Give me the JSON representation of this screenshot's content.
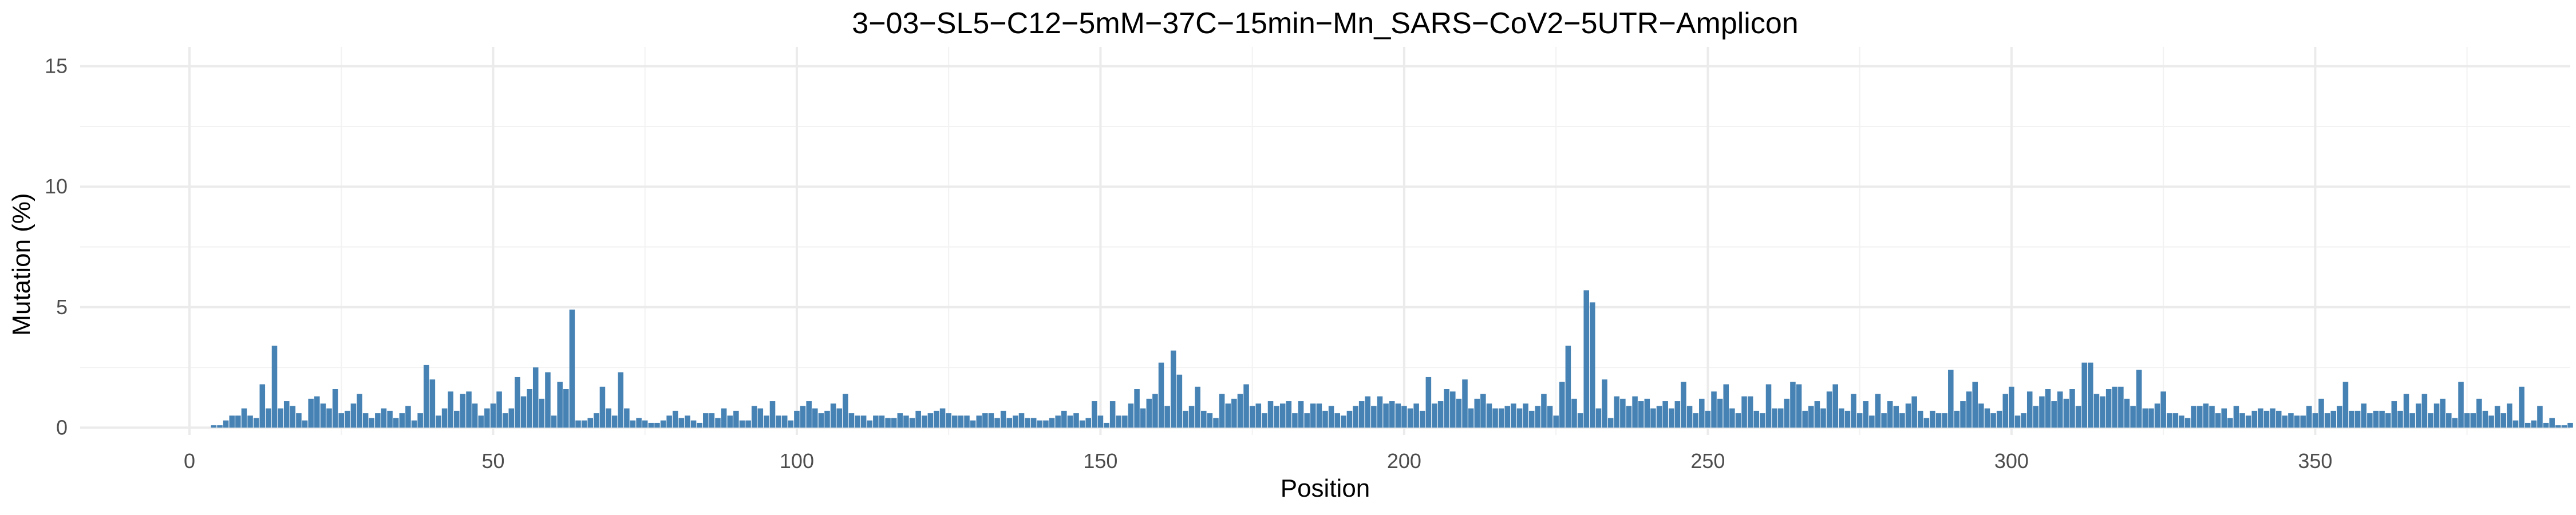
{
  "chart_data": {
    "type": "bar",
    "title": "3−03−SL5−C12−5mM−37C−15min−Mn_SARS−CoV2−5UTR−Amplicon",
    "xlabel": "Position",
    "ylabel": "Mutation (%)",
    "xlim": [
      -18,
      392
    ],
    "ylim": [
      -0.3,
      15.8
    ],
    "xticks": [
      0,
      50,
      100,
      150,
      200,
      250,
      300,
      350
    ],
    "yticks": [
      0,
      5,
      10,
      15
    ],
    "grid": true,
    "legend": "none",
    "bar_color": "#4682B4",
    "positions_start": 4,
    "values": [
      0.1,
      0.1,
      0.3,
      0.5,
      0.5,
      0.8,
      0.5,
      0.4,
      1.8,
      0.8,
      3.4,
      0.8,
      1.1,
      0.9,
      0.6,
      0.3,
      1.2,
      1.3,
      1.0,
      0.8,
      1.6,
      0.6,
      0.7,
      1.0,
      1.4,
      0.6,
      0.4,
      0.6,
      0.8,
      0.7,
      0.4,
      0.6,
      0.9,
      0.3,
      0.6,
      2.6,
      2.0,
      0.5,
      0.8,
      1.5,
      0.7,
      1.4,
      1.5,
      1.0,
      0.5,
      0.8,
      1.0,
      1.5,
      0.6,
      0.8,
      2.1,
      1.3,
      1.6,
      2.5,
      1.2,
      2.3,
      0.5,
      1.9,
      1.6,
      4.9,
      0.3,
      0.3,
      0.4,
      0.6,
      1.7,
      0.8,
      0.5,
      2.3,
      0.8,
      0.3,
      0.4,
      0.3,
      0.2,
      0.2,
      0.3,
      0.5,
      0.7,
      0.4,
      0.5,
      0.3,
      0.2,
      0.6,
      0.6,
      0.4,
      0.8,
      0.5,
      0.7,
      0.3,
      0.3,
      0.9,
      0.8,
      0.5,
      1.1,
      0.5,
      0.5,
      0.3,
      0.7,
      0.9,
      1.1,
      0.8,
      0.6,
      0.7,
      1.0,
      0.8,
      1.4,
      0.6,
      0.5,
      0.5,
      0.3,
      0.5,
      0.5,
      0.4,
      0.4,
      0.6,
      0.5,
      0.4,
      0.7,
      0.5,
      0.6,
      0.7,
      0.8,
      0.6,
      0.5,
      0.5,
      0.5,
      0.3,
      0.5,
      0.6,
      0.6,
      0.4,
      0.7,
      0.4,
      0.5,
      0.6,
      0.4,
      0.4,
      0.3,
      0.3,
      0.4,
      0.5,
      0.7,
      0.5,
      0.6,
      0.3,
      0.4,
      1.1,
      0.5,
      0.2,
      1.1,
      0.5,
      0.5,
      1.0,
      1.6,
      0.8,
      1.2,
      1.4,
      2.7,
      0.9,
      3.2,
      2.2,
      0.7,
      0.9,
      1.7,
      0.7,
      0.6,
      0.4,
      1.4,
      1.0,
      1.2,
      1.4,
      1.8,
      0.9,
      1.0,
      0.6,
      1.1,
      0.9,
      1.0,
      1.1,
      0.6,
      1.1,
      0.6,
      1.0,
      1.0,
      0.7,
      0.9,
      0.6,
      0.5,
      0.7,
      0.9,
      1.1,
      1.3,
      0.9,
      1.3,
      1.0,
      1.1,
      1.0,
      0.9,
      0.8,
      1.0,
      0.7,
      2.1,
      1.0,
      1.1,
      1.6,
      1.5,
      1.2,
      2.0,
      0.8,
      1.2,
      1.4,
      1.0,
      0.8,
      0.8,
      0.9,
      1.0,
      0.8,
      1.0,
      0.7,
      0.9,
      1.4,
      0.9,
      0.5,
      1.9,
      3.4,
      1.2,
      0.6,
      5.7,
      5.2,
      0.8,
      2.0,
      0.4,
      1.3,
      1.2,
      0.9,
      1.3,
      1.1,
      1.2,
      0.8,
      0.9,
      1.1,
      0.8,
      1.1,
      1.9,
      0.9,
      0.6,
      1.2,
      0.7,
      1.5,
      1.2,
      1.8,
      0.8,
      0.6,
      1.3,
      1.3,
      0.7,
      0.6,
      1.8,
      0.8,
      0.8,
      1.2,
      1.9,
      1.8,
      0.7,
      0.9,
      1.1,
      0.8,
      1.5,
      1.8,
      0.8,
      0.7,
      1.4,
      0.6,
      1.1,
      0.5,
      1.4,
      0.6,
      1.1,
      0.9,
      0.6,
      1.0,
      1.3,
      0.7,
      0.4,
      0.7,
      0.6,
      0.6,
      2.4,
      0.7,
      1.1,
      1.5,
      1.9,
      1.0,
      0.8,
      0.6,
      0.7,
      1.4,
      1.7,
      0.5,
      0.6,
      1.5,
      0.9,
      1.3,
      1.6,
      1.1,
      1.5,
      1.2,
      1.6,
      0.9,
      2.7,
      2.7,
      1.4,
      1.3,
      1.6,
      1.7,
      1.7,
      1.2,
      0.9,
      2.4,
      0.8,
      0.8,
      1.0,
      1.5,
      0.6,
      0.6,
      0.5,
      0.4,
      0.9,
      0.9,
      1.0,
      0.9,
      0.6,
      0.8,
      0.4,
      0.9,
      0.6,
      0.5,
      0.7,
      0.8,
      0.7,
      0.8,
      0.7,
      0.5,
      0.6,
      0.5,
      0.5,
      0.9,
      0.6,
      1.2,
      0.6,
      0.7,
      0.9,
      1.9,
      0.7,
      0.7,
      1.0,
      0.6,
      0.7,
      0.7,
      0.6,
      1.1,
      0.7,
      1.4,
      0.6,
      1.0,
      1.4,
      0.6,
      1.0,
      1.2,
      0.6,
      0.4,
      1.9,
      0.6,
      0.6,
      1.2,
      0.7,
      0.5,
      0.9,
      0.6,
      1.0,
      0.3,
      1.7,
      0.2,
      0.3,
      0.9,
      0.2,
      0.4,
      0.1,
      0.1,
      0.2
    ]
  }
}
